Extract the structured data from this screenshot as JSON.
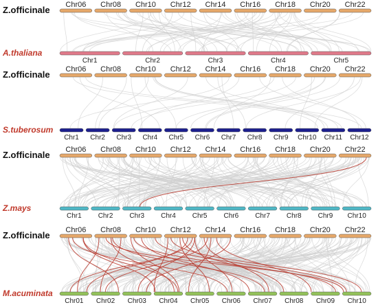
{
  "panels": [
    {
      "species_top": "Z.officinale",
      "species_bottom": "A.thaliana",
      "top_chroms": [
        "Chr06",
        "Chr08",
        "Chr10",
        "Chr12",
        "Chr14",
        "Chr16",
        "Chr18",
        "Chr20",
        "Chr22"
      ],
      "bottom_chroms": [
        "Chr1",
        "Chr2",
        "Chr3",
        "Chr4",
        "Chr5"
      ],
      "bottom_color": "#e07a8a",
      "gray_links": 60,
      "red_links": 0
    },
    {
      "species_top": "Z.officinale",
      "species_bottom": "S.tuberosum",
      "top_chroms": [
        "Chr06",
        "Chr08",
        "Chr10",
        "Chr12",
        "Chr14",
        "Chr16",
        "Chr18",
        "Chr20",
        "Chr22"
      ],
      "bottom_chroms": [
        "Chr1",
        "Chr2",
        "Chr3",
        "Chr4",
        "Chr5",
        "Chr6",
        "Chr7",
        "Chr8",
        "Chr9",
        "Chr10",
        "Chr11",
        "Chr12"
      ],
      "bottom_color": "#1c1f8f",
      "gray_links": 30,
      "red_links": 0
    },
    {
      "species_top": "Z.officinale",
      "species_bottom": "Z.mays",
      "top_chroms": [
        "Chr06",
        "Chr08",
        "Chr10",
        "Chr12",
        "Chr14",
        "Chr16",
        "Chr18",
        "Chr20",
        "Chr22"
      ],
      "bottom_chroms": [
        "Chr1",
        "Chr2",
        "Chr3",
        "Chr4",
        "Chr5",
        "Chr6",
        "Chr7",
        "Chr8",
        "Chr9",
        "Chr10"
      ],
      "bottom_color": "#4fb8c6",
      "gray_links": 140,
      "red_links": 1
    },
    {
      "species_top": "Z.officinale",
      "species_bottom": "M.acuminata",
      "top_chroms": [
        "Chr06",
        "Chr08",
        "Chr10",
        "Chr12",
        "Chr14",
        "Chr16",
        "Chr18",
        "Chr20",
        "Chr22"
      ],
      "bottom_chroms": [
        "Chr01",
        "Chr02",
        "Chr03",
        "Chr04",
        "Chr05",
        "Chr06",
        "Chr07",
        "Chr08",
        "Chr09",
        "Chr10"
      ],
      "bottom_color": "#93c25a",
      "gray_links": 180,
      "red_links": 26
    }
  ],
  "colors": {
    "top_chrom": "#e6a86a",
    "species_top_label": "#111111",
    "species_bottom_label": "#c0392b",
    "gray_link": "#cfcfcf",
    "red_link": "#b83a2e",
    "chrom_outline": "#555555"
  }
}
